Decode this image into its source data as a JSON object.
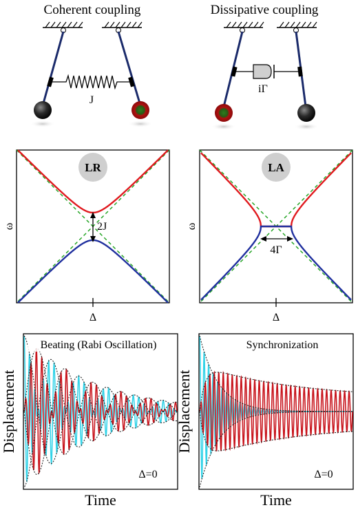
{
  "panels": {
    "coherent_title": "Coherent coupling",
    "dissipative_title": "Dissipative coupling",
    "coherent_constant": "J",
    "dissipative_constant": "iΓ",
    "lr_badge": "LR",
    "la_badge": "LA",
    "lr_gap": "2J",
    "la_gap": "4Γ",
    "freq_axis": "ω",
    "detuning_axis": "Δ",
    "beating_label": "Beating (Rabi Oscillation)",
    "sync_label": "Synchronization",
    "displacement_axis": "Displacement",
    "time_axis": "Time",
    "detuning_zero": "Δ=0"
  },
  "colors": {
    "upper_branch": "#e0191e",
    "lower_branch": "#1f2f9e",
    "asymptote": "#1aa01a",
    "osc_cyan": "#33d3e8",
    "osc_red": "#c8141c",
    "rod": "#1a2a6a",
    "badge_bg": "#cfcfcf"
  },
  "icons": [
    "pendulum-icon",
    "spring-icon",
    "dashpot-icon",
    "bob-icon"
  ]
}
